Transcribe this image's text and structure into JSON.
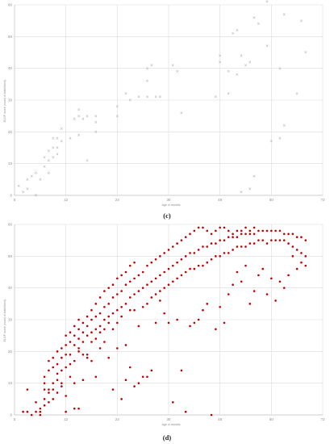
{
  "panels": [
    {
      "label": "(c)",
      "xlabel": "Age in months",
      "ylabel": "ELCP score (count of total items)",
      "point_color": "#aaaaaa",
      "marker": "x"
    },
    {
      "label": "(d)",
      "xlabel": "Age in months",
      "ylabel": "ELCP score (count of total items)",
      "point_color": "#c00000",
      "marker": "dot"
    }
  ],
  "chart_data": [
    {
      "type": "scatter",
      "title": "",
      "xlabel": "Age in months",
      "ylabel": "ELCP score (count of total items)",
      "xlim": [
        0,
        72
      ],
      "ylim": [
        0,
        60
      ],
      "xticks": [
        0,
        12,
        24,
        36,
        48,
        60,
        72
      ],
      "yticks": [
        0,
        10,
        20,
        30,
        40,
        50,
        60
      ],
      "grid": true,
      "points": [
        [
          1,
          3
        ],
        [
          2,
          1
        ],
        [
          3,
          5
        ],
        [
          3,
          2
        ],
        [
          4,
          6
        ],
        [
          5,
          7
        ],
        [
          5,
          0
        ],
        [
          6,
          5
        ],
        [
          7,
          9
        ],
        [
          7,
          12
        ],
        [
          8,
          7
        ],
        [
          8,
          11
        ],
        [
          8,
          14
        ],
        [
          9,
          12
        ],
        [
          9,
          15
        ],
        [
          9,
          18
        ],
        [
          10,
          18
        ],
        [
          10,
          13
        ],
        [
          10,
          15
        ],
        [
          11,
          21
        ],
        [
          11,
          17
        ],
        [
          13,
          18
        ],
        [
          14,
          24
        ],
        [
          15,
          27
        ],
        [
          15,
          25
        ],
        [
          15,
          19
        ],
        [
          16,
          24
        ],
        [
          17,
          11
        ],
        [
          17,
          25
        ],
        [
          19,
          25
        ],
        [
          19,
          23
        ],
        [
          19,
          20
        ],
        [
          24,
          28
        ],
        [
          24,
          25
        ],
        [
          26,
          32
        ],
        [
          27,
          30
        ],
        [
          29,
          31
        ],
        [
          31,
          31
        ],
        [
          31,
          36
        ],
        [
          31,
          40
        ],
        [
          32,
          41
        ],
        [
          33,
          31
        ],
        [
          34,
          31
        ],
        [
          37,
          41
        ],
        [
          38,
          39
        ],
        [
          39,
          26
        ],
        [
          47,
          31
        ],
        [
          48,
          44
        ],
        [
          48,
          42
        ],
        [
          50,
          32
        ],
        [
          50,
          39
        ],
        [
          51,
          51
        ],
        [
          52,
          38
        ],
        [
          52,
          52
        ],
        [
          53,
          1
        ],
        [
          53,
          44
        ],
        [
          54,
          41
        ],
        [
          55,
          42
        ],
        [
          55,
          2
        ],
        [
          56,
          6
        ],
        [
          56,
          56
        ],
        [
          57,
          54
        ],
        [
          59,
          61
        ],
        [
          59,
          47
        ],
        [
          60,
          17
        ],
        [
          62,
          40
        ],
        [
          62,
          18
        ],
        [
          63,
          22
        ],
        [
          63,
          57
        ],
        [
          66,
          32
        ],
        [
          67,
          55
        ],
        [
          68,
          45
        ]
      ]
    },
    {
      "type": "scatter",
      "title": "",
      "xlabel": "Age in months",
      "ylabel": "ELCP score (count of total items)",
      "xlim": [
        0,
        72
      ],
      "ylim": [
        0,
        60
      ],
      "xticks": [
        0,
        12,
        24,
        36,
        48,
        60,
        72
      ],
      "yticks": [
        0,
        10,
        20,
        30,
        40,
        50,
        60
      ],
      "grid": true,
      "points": [
        [
          2,
          1
        ],
        [
          3,
          8
        ],
        [
          3,
          1
        ],
        [
          4,
          0
        ],
        [
          5,
          1
        ],
        [
          5,
          4
        ],
        [
          6,
          2
        ],
        [
          6,
          1
        ],
        [
          6,
          0
        ],
        [
          7,
          3
        ],
        [
          7,
          5
        ],
        [
          7,
          8
        ],
        [
          7,
          10
        ],
        [
          7,
          12
        ],
        [
          8,
          4
        ],
        [
          8,
          8
        ],
        [
          8,
          14
        ],
        [
          8,
          17
        ],
        [
          8,
          7
        ],
        [
          9,
          10
        ],
        [
          9,
          15
        ],
        [
          9,
          18
        ],
        [
          9,
          5
        ],
        [
          9,
          8
        ],
        [
          10,
          11
        ],
        [
          10,
          13
        ],
        [
          10,
          16
        ],
        [
          10,
          20
        ],
        [
          10,
          7
        ],
        [
          11,
          14
        ],
        [
          11,
          18
        ],
        [
          11,
          21
        ],
        [
          11,
          10
        ],
        [
          11,
          9
        ],
        [
          12,
          15
        ],
        [
          12,
          19
        ],
        [
          12,
          22
        ],
        [
          12,
          25
        ],
        [
          12,
          6
        ],
        [
          12,
          1
        ],
        [
          13,
          19
        ],
        [
          13,
          23
        ],
        [
          13,
          26
        ],
        [
          13,
          16
        ],
        [
          13,
          12
        ],
        [
          14,
          17
        ],
        [
          14,
          22
        ],
        [
          14,
          25
        ],
        [
          14,
          28
        ],
        [
          14,
          10
        ],
        [
          14,
          2
        ],
        [
          15,
          24
        ],
        [
          15,
          27
        ],
        [
          15,
          20
        ],
        [
          15,
          21
        ],
        [
          15,
          30
        ],
        [
          15,
          2
        ],
        [
          16,
          23
        ],
        [
          16,
          26
        ],
        [
          16,
          29
        ],
        [
          16,
          19
        ],
        [
          16,
          11
        ],
        [
          17,
          25
        ],
        [
          17,
          28
        ],
        [
          17,
          31
        ],
        [
          17,
          19
        ],
        [
          17,
          18
        ],
        [
          18,
          26
        ],
        [
          18,
          30
        ],
        [
          18,
          33
        ],
        [
          18,
          23
        ],
        [
          18,
          17
        ],
        [
          19,
          27
        ],
        [
          19,
          31
        ],
        [
          19,
          35
        ],
        [
          19,
          24
        ],
        [
          19,
          12
        ],
        [
          20,
          28
        ],
        [
          20,
          32
        ],
        [
          20,
          37
        ],
        [
          20,
          26
        ],
        [
          20,
          21
        ],
        [
          21,
          30
        ],
        [
          21,
          34
        ],
        [
          21,
          39
        ],
        [
          21,
          27
        ],
        [
          21,
          23
        ],
        [
          22,
          31
        ],
        [
          22,
          35
        ],
        [
          22,
          40
        ],
        [
          22,
          29
        ],
        [
          22,
          18
        ],
        [
          23,
          32
        ],
        [
          23,
          37
        ],
        [
          23,
          41
        ],
        [
          23,
          27
        ],
        [
          23,
          8
        ],
        [
          24,
          33
        ],
        [
          24,
          38
        ],
        [
          24,
          43
        ],
        [
          24,
          29
        ],
        [
          24,
          21
        ],
        [
          25,
          34
        ],
        [
          25,
          39
        ],
        [
          25,
          44
        ],
        [
          25,
          31
        ],
        [
          25,
          5
        ],
        [
          26,
          35
        ],
        [
          26,
          41
        ],
        [
          26,
          45
        ],
        [
          26,
          22
        ],
        [
          26,
          11
        ],
        [
          27,
          37
        ],
        [
          27,
          42
        ],
        [
          27,
          47
        ],
        [
          27,
          33
        ],
        [
          27,
          15
        ],
        [
          28,
          38
        ],
        [
          28,
          43
        ],
        [
          28,
          48
        ],
        [
          28,
          33
        ],
        [
          28,
          9
        ],
        [
          29,
          39
        ],
        [
          29,
          44
        ],
        [
          29,
          28
        ],
        [
          29,
          10
        ],
        [
          30,
          40
        ],
        [
          30,
          45
        ],
        [
          30,
          34
        ],
        [
          30,
          12
        ],
        [
          31,
          41
        ],
        [
          31,
          47
        ],
        [
          31,
          35
        ],
        [
          31,
          12
        ],
        [
          32,
          42
        ],
        [
          32,
          48
        ],
        [
          32,
          37
        ],
        [
          32,
          14
        ],
        [
          33,
          43
        ],
        [
          33,
          49
        ],
        [
          33,
          38
        ],
        [
          33,
          29
        ],
        [
          34,
          44
        ],
        [
          34,
          50
        ],
        [
          34,
          39
        ],
        [
          34,
          36
        ],
        [
          35,
          45
        ],
        [
          35,
          51
        ],
        [
          35,
          40
        ],
        [
          35,
          32
        ],
        [
          36,
          46
        ],
        [
          36,
          52
        ],
        [
          36,
          41
        ],
        [
          36,
          29
        ],
        [
          37,
          47
        ],
        [
          37,
          53
        ],
        [
          37,
          42
        ],
        [
          37,
          4
        ],
        [
          38,
          48
        ],
        [
          38,
          54
        ],
        [
          38,
          43
        ],
        [
          38,
          30
        ],
        [
          39,
          49
        ],
        [
          39,
          55
        ],
        [
          39,
          44
        ],
        [
          39,
          14
        ],
        [
          40,
          50
        ],
        [
          40,
          56
        ],
        [
          40,
          45
        ],
        [
          40,
          1
        ],
        [
          41,
          51
        ],
        [
          41,
          57
        ],
        [
          41,
          46
        ],
        [
          41,
          28
        ],
        [
          42,
          51
        ],
        [
          42,
          58
        ],
        [
          42,
          46
        ],
        [
          42,
          29
        ],
        [
          43,
          52
        ],
        [
          43,
          59
        ],
        [
          43,
          47
        ],
        [
          43,
          30
        ],
        [
          44,
          53
        ],
        [
          44,
          59
        ],
        [
          44,
          47
        ],
        [
          44,
          33
        ],
        [
          45,
          53
        ],
        [
          45,
          58
        ],
        [
          45,
          48
        ],
        [
          45,
          35
        ],
        [
          46,
          54
        ],
        [
          46,
          57
        ],
        [
          46,
          49
        ],
        [
          46,
          0
        ],
        [
          47,
          54
        ],
        [
          47,
          58
        ],
        [
          47,
          50
        ],
        [
          47,
          27
        ],
        [
          48,
          55
        ],
        [
          48,
          59
        ],
        [
          48,
          50
        ],
        [
          48,
          34
        ],
        [
          49,
          55
        ],
        [
          49,
          59
        ],
        [
          49,
          51
        ],
        [
          49,
          29
        ],
        [
          50,
          56
        ],
        [
          50,
          58
        ],
        [
          50,
          51
        ],
        [
          50,
          38
        ],
        [
          51,
          56
        ],
        [
          51,
          57
        ],
        [
          51,
          52
        ],
        [
          51,
          41
        ],
        [
          52,
          56
        ],
        [
          52,
          58
        ],
        [
          52,
          53
        ],
        [
          52,
          45
        ],
        [
          53,
          57
        ],
        [
          53,
          58
        ],
        [
          53,
          53
        ],
        [
          53,
          42
        ],
        [
          54,
          57
        ],
        [
          54,
          59
        ],
        [
          54,
          53
        ],
        [
          54,
          47
        ],
        [
          55,
          57
        ],
        [
          55,
          58
        ],
        [
          55,
          54
        ],
        [
          55,
          35
        ],
        [
          56,
          57
        ],
        [
          56,
          59
        ],
        [
          56,
          54
        ],
        [
          56,
          39
        ],
        [
          57,
          58
        ],
        [
          57,
          55
        ],
        [
          57,
          44
        ],
        [
          58,
          58
        ],
        [
          58,
          55
        ],
        [
          58,
          46
        ],
        [
          59,
          58
        ],
        [
          59,
          54
        ],
        [
          59,
          38
        ],
        [
          60,
          58
        ],
        [
          60,
          55
        ],
        [
          60,
          43
        ],
        [
          61,
          58
        ],
        [
          61,
          55
        ],
        [
          61,
          36
        ],
        [
          62,
          58
        ],
        [
          62,
          55
        ],
        [
          62,
          42
        ],
        [
          63,
          57
        ],
        [
          63,
          55
        ],
        [
          63,
          40
        ],
        [
          64,
          57
        ],
        [
          64,
          54
        ],
        [
          64,
          44
        ],
        [
          65,
          57
        ],
        [
          65,
          53
        ],
        [
          65,
          50
        ],
        [
          66,
          56
        ],
        [
          66,
          52
        ],
        [
          66,
          46
        ],
        [
          67,
          56
        ],
        [
          67,
          51
        ],
        [
          67,
          48
        ],
        [
          68,
          55
        ],
        [
          68,
          50
        ],
        [
          68,
          47
        ]
      ]
    }
  ]
}
